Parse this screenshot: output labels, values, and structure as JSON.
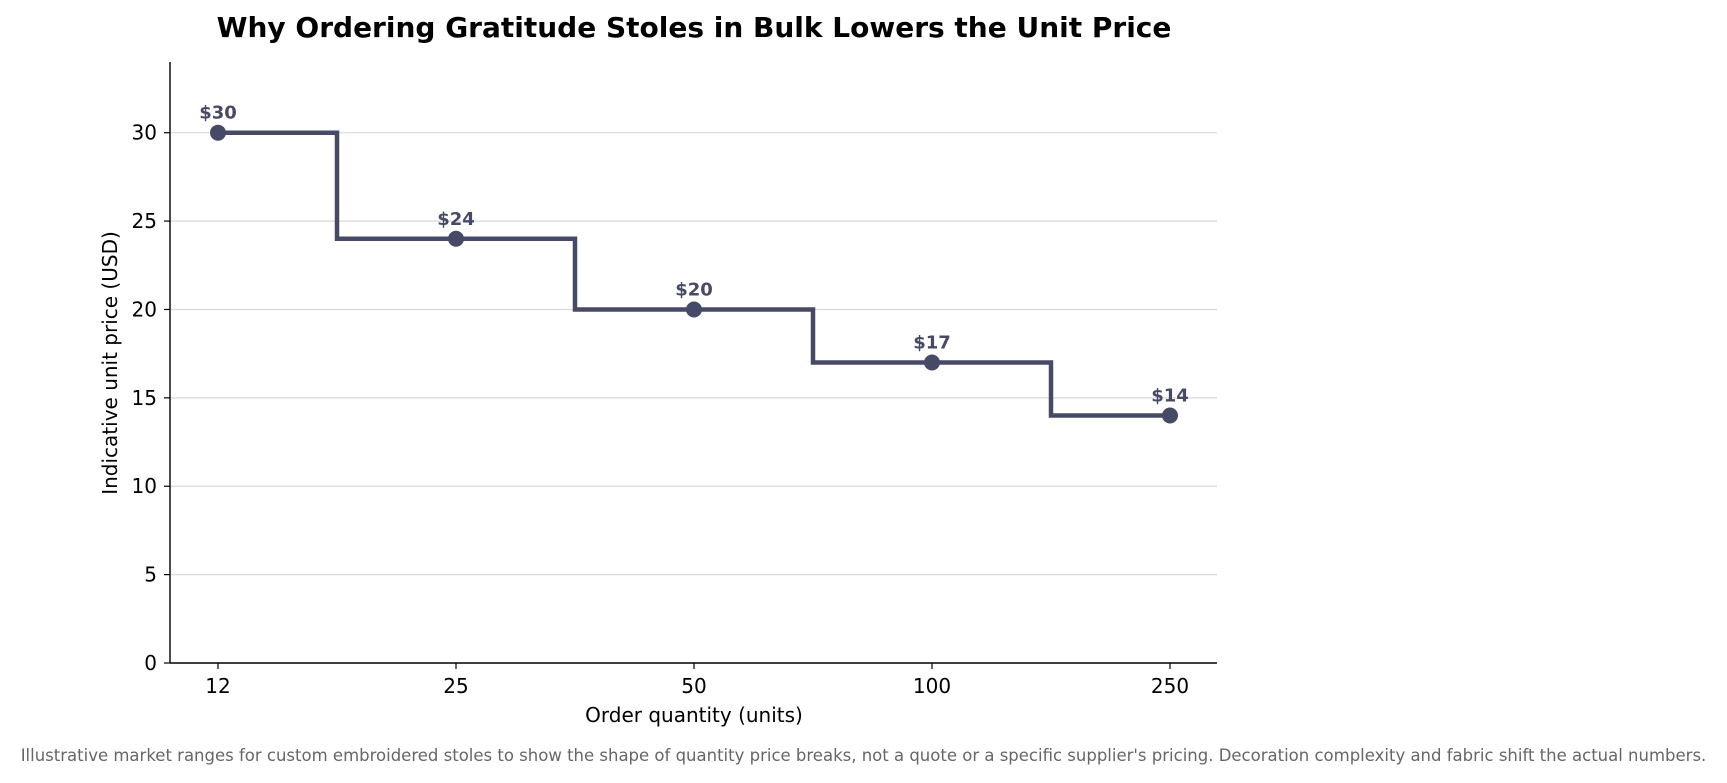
{
  "chart_data": {
    "type": "line",
    "step": true,
    "title": "Why Ordering Gratitude Stoles in Bulk Lowers the Unit Price",
    "xlabel": "Order quantity (units)",
    "ylabel": "Indicative unit price (USD)",
    "categories": [
      "12",
      "25",
      "50",
      "100",
      "250"
    ],
    "values": [
      30,
      24,
      20,
      17,
      14
    ],
    "data_labels": [
      "$30",
      "$24",
      "$20",
      "$17",
      "$14"
    ],
    "ylim": [
      0,
      34
    ],
    "yticks": [
      0,
      5,
      10,
      15,
      20,
      25,
      30
    ],
    "grid": "horizontal",
    "colors": {
      "series": "#474a66",
      "grid": "#d9d9d9",
      "axis": "#000000"
    }
  },
  "caption": "Illustrative market ranges for custom embroidered stoles to show the shape of quantity price breaks, not a quote or a specific supplier's pricing. Decoration complexity and fabric shift the actual numbers."
}
